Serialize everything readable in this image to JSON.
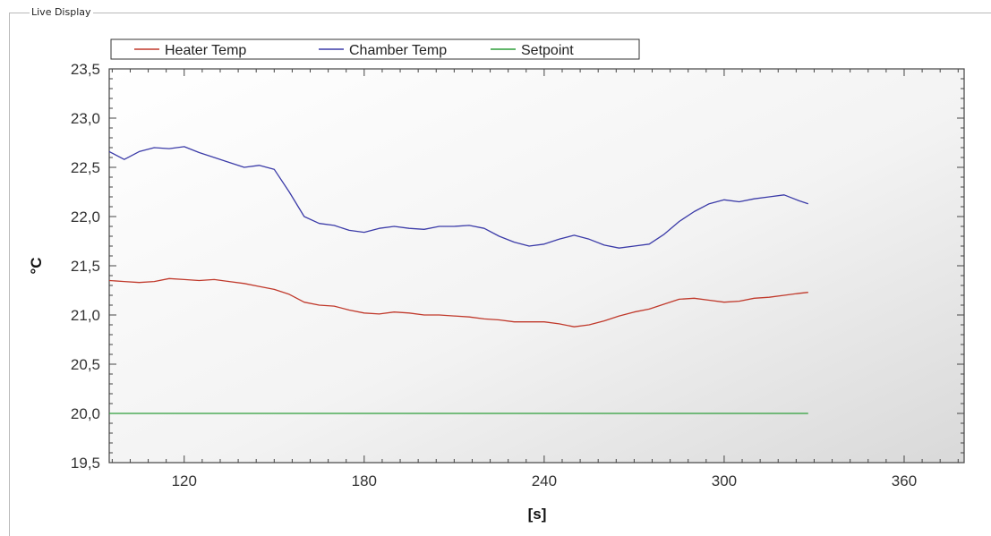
{
  "panel": {
    "title": "Live Display"
  },
  "chart_data": {
    "type": "line",
    "title": "",
    "xlabel": "[s]",
    "ylabel": "°C",
    "xlim": [
      95,
      380
    ],
    "ylim": [
      19.5,
      23.5
    ],
    "x_ticks": [
      120,
      180,
      240,
      300,
      360
    ],
    "y_ticks": [
      19.5,
      20.0,
      20.5,
      21.0,
      21.5,
      22.0,
      22.5,
      23.0,
      23.5
    ],
    "y_tick_labels": [
      "19,5",
      "20,0",
      "20,5",
      "21,0",
      "21,5",
      "22,0",
      "22,5",
      "23,0",
      "23,5"
    ],
    "legend_position": "top-left",
    "grid": false,
    "series": [
      {
        "name": "Heater Temp",
        "color": "#c0392b",
        "x": [
          95,
          100,
          105,
          110,
          115,
          120,
          125,
          130,
          135,
          140,
          145,
          150,
          155,
          160,
          165,
          170,
          175,
          180,
          185,
          190,
          195,
          200,
          205,
          210,
          215,
          220,
          225,
          230,
          235,
          240,
          245,
          250,
          255,
          260,
          265,
          270,
          275,
          280,
          285,
          290,
          295,
          300,
          305,
          310,
          315,
          320,
          325,
          328
        ],
        "values": [
          21.35,
          21.34,
          21.33,
          21.34,
          21.37,
          21.36,
          21.35,
          21.36,
          21.34,
          21.32,
          21.29,
          21.26,
          21.21,
          21.13,
          21.1,
          21.09,
          21.05,
          21.02,
          21.01,
          21.03,
          21.02,
          21.0,
          21.0,
          20.99,
          20.98,
          20.96,
          20.95,
          20.93,
          20.93,
          20.93,
          20.91,
          20.88,
          20.9,
          20.94,
          20.99,
          21.03,
          21.06,
          21.11,
          21.16,
          21.17,
          21.15,
          21.13,
          21.14,
          21.17,
          21.18,
          21.2,
          21.22,
          21.23
        ]
      },
      {
        "name": "Chamber Temp",
        "color": "#3b3ba8",
        "x": [
          95,
          100,
          105,
          110,
          115,
          120,
          125,
          130,
          135,
          140,
          145,
          150,
          155,
          160,
          165,
          170,
          175,
          180,
          185,
          190,
          195,
          200,
          205,
          210,
          215,
          220,
          225,
          230,
          235,
          240,
          245,
          250,
          255,
          260,
          265,
          270,
          275,
          280,
          285,
          290,
          295,
          300,
          305,
          310,
          315,
          320,
          325,
          328
        ],
        "values": [
          22.66,
          22.58,
          22.66,
          22.7,
          22.69,
          22.71,
          22.65,
          22.6,
          22.55,
          22.5,
          22.52,
          22.48,
          22.25,
          22.0,
          21.93,
          21.91,
          21.86,
          21.84,
          21.88,
          21.9,
          21.88,
          21.87,
          21.9,
          21.9,
          21.91,
          21.88,
          21.8,
          21.74,
          21.7,
          21.72,
          21.77,
          21.81,
          21.77,
          21.71,
          21.68,
          21.7,
          21.72,
          21.82,
          21.95,
          22.05,
          22.13,
          22.17,
          22.15,
          22.18,
          22.2,
          22.22,
          22.16,
          22.13
        ]
      },
      {
        "name": "Setpoint",
        "color": "#2e9e3a",
        "x": [
          95,
          328
        ],
        "values": [
          20.0,
          20.0
        ]
      }
    ]
  }
}
